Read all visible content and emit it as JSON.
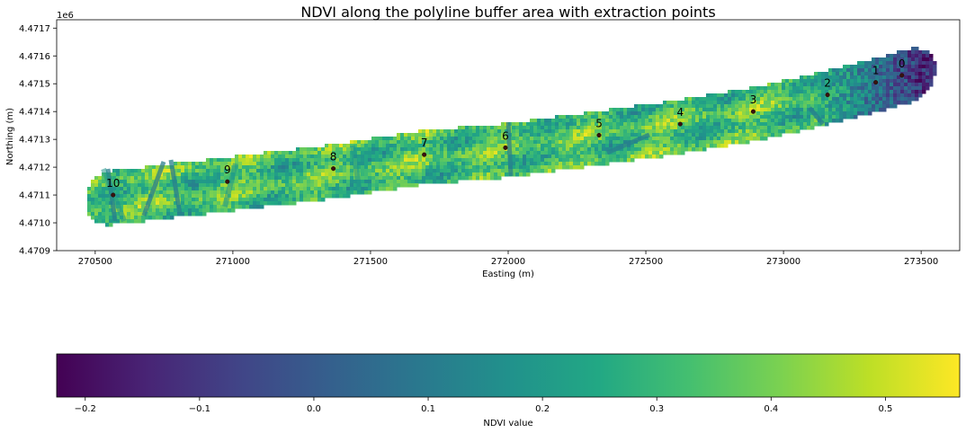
{
  "chart_data": {
    "type": "heatmap",
    "title": "NDVI along the polyline buffer area with extraction points",
    "xlabel": "Easting (m)",
    "ylabel": "Northing (m)",
    "y_offset_label": "1e6",
    "xlim": [
      270360,
      273640
    ],
    "ylim": [
      4470900,
      4471730
    ],
    "x_ticks": [
      270500,
      271000,
      271500,
      272000,
      272500,
      273000,
      273500
    ],
    "x_tick_labels": [
      "270500",
      "271000",
      "271500",
      "272000",
      "272500",
      "273000",
      "273500"
    ],
    "y_ticks": [
      4470900,
      4471000,
      4471100,
      4471200,
      4471300,
      4471400,
      4471500,
      4471600,
      4471700
    ],
    "y_tick_labels": [
      "4.4709",
      "4.4710",
      "4.4711",
      "4.4712",
      "4.4713",
      "4.4714",
      "4.4715",
      "4.4716",
      "4.4717"
    ],
    "grid": false,
    "points": [
      {
        "label": "0",
        "x": 273430,
        "y": 4471530
      },
      {
        "label": "1",
        "x": 273335,
        "y": 4471505
      },
      {
        "label": "2",
        "x": 273160,
        "y": 4471460
      },
      {
        "label": "3",
        "x": 272890,
        "y": 4471400
      },
      {
        "label": "4",
        "x": 272625,
        "y": 4471355
      },
      {
        "label": "5",
        "x": 272330,
        "y": 4471315
      },
      {
        "label": "6",
        "x": 271990,
        "y": 4471270
      },
      {
        "label": "7",
        "x": 271695,
        "y": 4471245
      },
      {
        "label": "8",
        "x": 271365,
        "y": 4471195
      },
      {
        "label": "9",
        "x": 270980,
        "y": 4471148
      },
      {
        "label": "10",
        "x": 270565,
        "y": 4471100
      }
    ],
    "colorbar": {
      "colormap": "viridis",
      "label": "NDVI value",
      "range": [
        -0.225,
        0.565
      ],
      "ticks": [
        -0.2,
        -0.1,
        0.0,
        0.1,
        0.2,
        0.3,
        0.4,
        0.5
      ],
      "tick_labels": [
        "−0.2",
        "−0.1",
        "0.0",
        "0.1",
        "0.2",
        "0.3",
        "0.4",
        "0.5"
      ]
    }
  }
}
